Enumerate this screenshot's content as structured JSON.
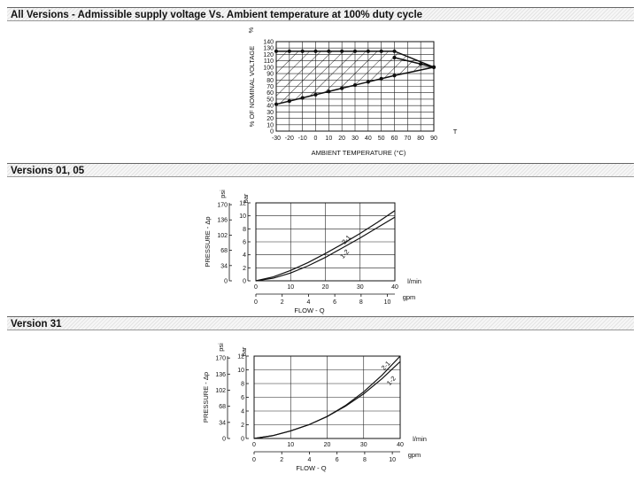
{
  "sections": [
    {
      "title": "All Versions - Admissible supply voltage Vs. Ambient temperature at 100% duty cycle"
    },
    {
      "title": "Versions 01, 05"
    },
    {
      "title": "Version 31"
    }
  ],
  "chart_data": [
    {
      "type": "area",
      "title": "",
      "xlabel": "AMBIENT TEMPERATURE (°C)",
      "x_axis_end_label": "T",
      "ylabel": "% OF NOMINAL VOLTAGE",
      "y_top_label": "%",
      "xlim": [
        -30,
        90
      ],
      "ylim": [
        0,
        140
      ],
      "x_ticks": [
        "-30",
        "-20",
        "-10",
        "0",
        "10",
        "20",
        "30",
        "40",
        "50",
        "60",
        "70",
        "80",
        "90"
      ],
      "y_ticks": [
        "0",
        "10",
        "20",
        "30",
        "40",
        "50",
        "60",
        "70",
        "80",
        "90",
        "100",
        "110",
        "120",
        "130",
        "140"
      ],
      "upper_boundary": {
        "x": [
          -30,
          -20,
          -10,
          0,
          10,
          20,
          30,
          40,
          50,
          60,
          90
        ],
        "y": [
          125,
          125,
          125,
          125,
          125,
          125,
          125,
          125,
          125,
          125,
          100
        ]
      },
      "upper_branch": {
        "x": [
          60,
          80,
          90
        ],
        "y": [
          115,
          105,
          100
        ]
      },
      "lower_boundary": {
        "x": [
          -30,
          -20,
          -10,
          0,
          10,
          20,
          30,
          40,
          50,
          60,
          90
        ],
        "y": [
          42,
          47,
          52,
          57,
          62,
          67,
          72,
          77,
          82,
          87,
          100
        ]
      },
      "grid": true,
      "shaded_region": "hatched"
    },
    {
      "type": "line",
      "title": "",
      "xlabel": "FLOW - Q",
      "x_unit_top": "l/min",
      "x_unit_bottom": "gpm",
      "ylabel": "PRESSURE - Δp",
      "y_unit_left": "psi",
      "y_unit_right": "bar",
      "xlim": [
        0,
        40
      ],
      "ylim": [
        0,
        12
      ],
      "x_ticks": [
        "0",
        "10",
        "20",
        "30",
        "40"
      ],
      "gpm_ticks": [
        "0",
        "2",
        "4",
        "6",
        "8",
        "10"
      ],
      "bar_ticks": [
        "0",
        "2",
        "4",
        "6",
        "8",
        "10",
        "12"
      ],
      "psi_ticks": [
        "0",
        "34",
        "68",
        "102",
        "136",
        "170"
      ],
      "grid": true,
      "series": [
        {
          "name": "2-1",
          "x": [
            0,
            5,
            10,
            15,
            20,
            25,
            30,
            35,
            40
          ],
          "values": [
            0,
            0.6,
            1.6,
            2.8,
            4.2,
            5.7,
            7.3,
            9.0,
            10.8
          ]
        },
        {
          "name": "1-2",
          "x": [
            0,
            5,
            10,
            15,
            20,
            25,
            30,
            35,
            40
          ],
          "values": [
            0,
            0.4,
            1.2,
            2.3,
            3.6,
            5.1,
            6.6,
            8.2,
            9.8
          ]
        }
      ]
    },
    {
      "type": "line",
      "title": "",
      "xlabel": "FLOW - Q",
      "x_unit_top": "l/min",
      "x_unit_bottom": "gpm",
      "ylabel": "PRESSURE - Δp",
      "y_unit_left": "psi",
      "y_unit_right": "bar",
      "xlim": [
        0,
        40
      ],
      "ylim": [
        0,
        12
      ],
      "x_ticks": [
        "0",
        "10",
        "20",
        "30",
        "40"
      ],
      "gpm_ticks": [
        "0",
        "2",
        "4",
        "6",
        "8",
        "10"
      ],
      "bar_ticks": [
        "0",
        "2",
        "4",
        "6",
        "8",
        "10",
        "12"
      ],
      "psi_ticks": [
        "0",
        "34",
        "68",
        "102",
        "136",
        "170"
      ],
      "grid": true,
      "series": [
        {
          "name": "2-1",
          "x": [
            0,
            5,
            10,
            15,
            20,
            25,
            30,
            35,
            40
          ],
          "values": [
            0,
            0.4,
            1.1,
            2.0,
            3.2,
            4.8,
            6.8,
            9.2,
            12.0
          ]
        },
        {
          "name": "1-2",
          "x": [
            0,
            5,
            10,
            15,
            20,
            25,
            30,
            35,
            40
          ],
          "values": [
            0,
            0.4,
            1.1,
            2.0,
            3.2,
            4.7,
            6.5,
            8.7,
            11.2
          ]
        }
      ]
    }
  ]
}
